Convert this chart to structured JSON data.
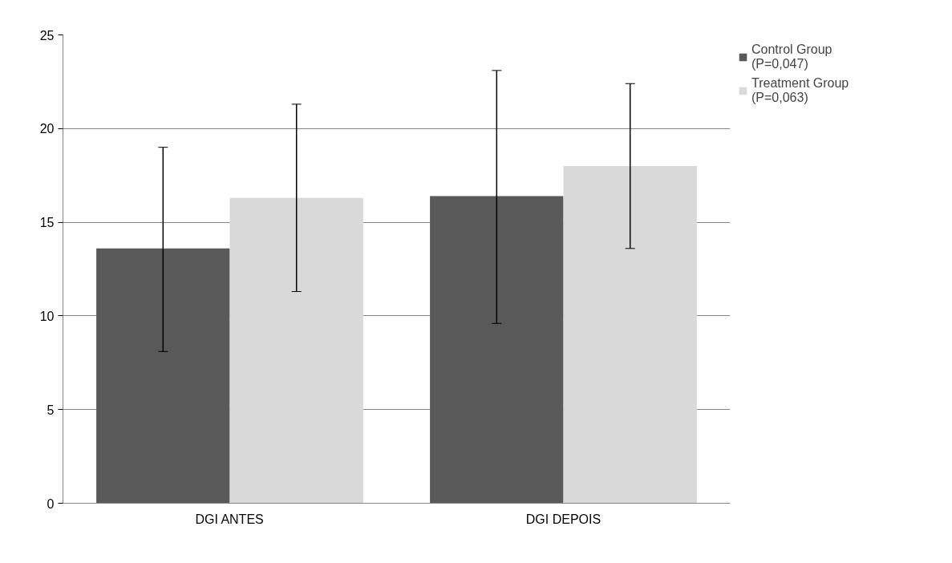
{
  "chart_data": {
    "type": "bar",
    "categories": [
      "DGI ANTES",
      "DGI DEPOIS"
    ],
    "series": [
      {
        "name": "Control Group (P=0,047)",
        "color": "#595959",
        "values": [
          13.6,
          16.4
        ],
        "errors": [
          [
            8.1,
            19.0
          ],
          [
            9.6,
            23.1
          ]
        ]
      },
      {
        "name": "Treatment Group (P=0,063)",
        "color": "#d9d9d9",
        "values": [
          16.3,
          18.0
        ],
        "errors": [
          [
            11.3,
            21.3
          ],
          [
            13.6,
            22.4
          ]
        ]
      }
    ],
    "ylim": [
      0,
      25
    ],
    "yticks": [
      0,
      5,
      10,
      15,
      20,
      25
    ],
    "grid": "y",
    "legend": "right"
  }
}
